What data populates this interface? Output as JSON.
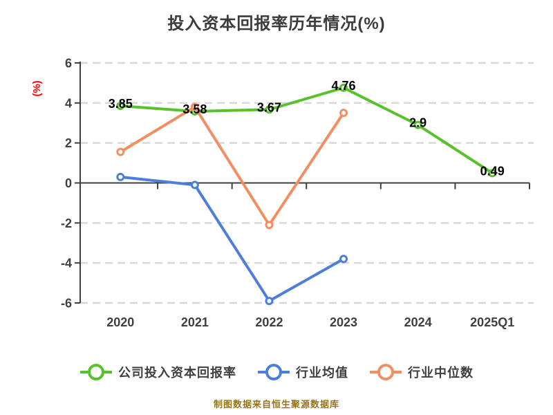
{
  "title": "投入资本回报率历年情况(%)",
  "footer": "制图数据来自恒生聚源数据库",
  "colors": {
    "title": "#3c3c3c",
    "axis": "#3f3f3f",
    "grid": "#d8d8d8",
    "tick_label": "#3f3f3f",
    "y_axis_label": "#ff0000",
    "data_label": "#000000",
    "legend_text": "#3f3f3f",
    "footer_text": "#97741c",
    "background": "#ffffff",
    "marker_fill": "#ffffff"
  },
  "chart_data": {
    "type": "line",
    "title": "投入资本回报率历年情况(%)",
    "xlabel": "",
    "ylabel": "(%)",
    "categories": [
      "2020",
      "2021",
      "2022",
      "2023",
      "2024",
      "2025Q1"
    ],
    "yticks": [
      6,
      4,
      2,
      0,
      -2,
      -4,
      -6
    ],
    "ylim": [
      -6,
      6
    ],
    "grid": "horizontal-dashed",
    "legend_position": "bottom",
    "series": [
      {
        "name": "公司投入资本回报率",
        "color": "#58c12b",
        "values": [
          3.85,
          3.58,
          3.67,
          4.76,
          2.9,
          0.49
        ],
        "point_labels": [
          "3.85",
          "3.58",
          "3.67",
          "4.76",
          "2.9",
          "0.49"
        ]
      },
      {
        "name": "行业均值",
        "color": "#4d7ed9",
        "values": [
          0.3,
          -0.1,
          -5.9,
          -3.8,
          null,
          null
        ],
        "point_labels": null
      },
      {
        "name": "行业中位数",
        "color": "#f28e61",
        "values": [
          1.55,
          3.8,
          -2.1,
          3.5,
          null,
          null
        ],
        "point_labels": null
      }
    ]
  }
}
